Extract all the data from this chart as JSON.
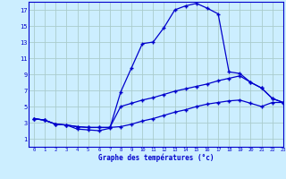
{
  "title": "Graphe des températures (°c)",
  "background_color": "#cceeff",
  "grid_color": "#aacccc",
  "line_color": "#0000cc",
  "xlim": [
    -0.5,
    23
  ],
  "ylim": [
    0,
    18
  ],
  "xticks": [
    0,
    1,
    2,
    3,
    4,
    5,
    6,
    7,
    8,
    9,
    10,
    11,
    12,
    13,
    14,
    15,
    16,
    17,
    18,
    19,
    20,
    21,
    22,
    23
  ],
  "yticks": [
    1,
    3,
    5,
    7,
    9,
    11,
    13,
    15,
    17
  ],
  "curve1_x": [
    0,
    1,
    2,
    3,
    4,
    5,
    6,
    7,
    8,
    9,
    10,
    11,
    12,
    13,
    14,
    15,
    16,
    17,
    18,
    19,
    20,
    21,
    22,
    23
  ],
  "curve1_y": [
    3.5,
    3.3,
    2.8,
    2.7,
    2.2,
    2.1,
    2.0,
    2.3,
    6.8,
    9.8,
    12.8,
    13.0,
    14.8,
    17.0,
    17.5,
    17.8,
    17.2,
    16.5,
    9.3,
    9.1,
    8.0,
    7.3,
    6.0,
    5.5
  ],
  "curve2_x": [
    0,
    1,
    2,
    3,
    4,
    5,
    6,
    7,
    8,
    9,
    10,
    11,
    12,
    13,
    14,
    15,
    16,
    17,
    18,
    19,
    20,
    21,
    22,
    23
  ],
  "curve2_y": [
    3.5,
    3.3,
    2.8,
    2.7,
    2.5,
    2.4,
    2.4,
    2.4,
    5.0,
    5.4,
    5.8,
    6.1,
    6.5,
    6.9,
    7.2,
    7.5,
    7.8,
    8.2,
    8.5,
    8.8,
    8.0,
    7.3,
    6.0,
    5.5
  ],
  "curve3_x": [
    0,
    1,
    2,
    3,
    4,
    5,
    6,
    7,
    8,
    9,
    10,
    11,
    12,
    13,
    14,
    15,
    16,
    17,
    18,
    19,
    20,
    21,
    22,
    23
  ],
  "curve3_y": [
    3.5,
    3.3,
    2.8,
    2.7,
    2.5,
    2.4,
    2.4,
    2.4,
    2.5,
    2.8,
    3.2,
    3.5,
    3.9,
    4.3,
    4.6,
    5.0,
    5.3,
    5.5,
    5.7,
    5.8,
    5.4,
    5.0,
    5.5,
    5.5
  ]
}
